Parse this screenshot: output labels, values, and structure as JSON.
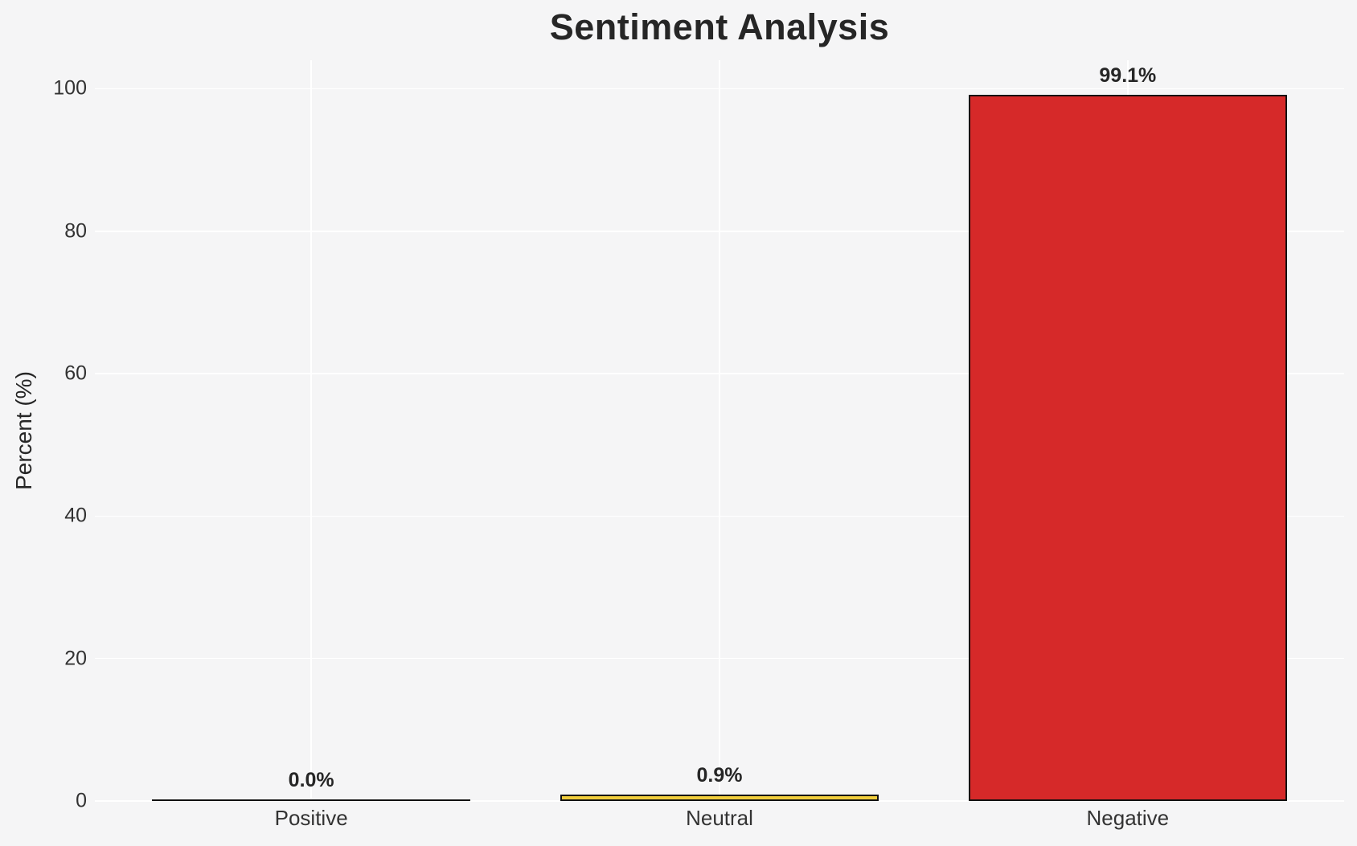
{
  "page": {
    "background_color": "#f5f5f6",
    "text_color": "#262626",
    "tick_color": "#333333"
  },
  "chart_data": {
    "type": "bar",
    "title": "Sentiment Analysis",
    "xlabel": "",
    "ylabel": "Percent (%)",
    "categories": [
      "Positive",
      "Neutral",
      "Negative"
    ],
    "values": [
      0.0,
      0.9,
      99.1
    ],
    "value_labels": [
      "0.0%",
      "0.9%",
      "99.1%"
    ],
    "bar_colors": [
      null,
      "#f0cd3c",
      "#d62929"
    ],
    "bar_edge_color": "#111111",
    "ylim": [
      0,
      104
    ],
    "yticks": [
      0,
      20,
      40,
      60,
      80,
      100
    ],
    "grid": true,
    "grid_color": "#ffffff",
    "legend_position": "none"
  }
}
